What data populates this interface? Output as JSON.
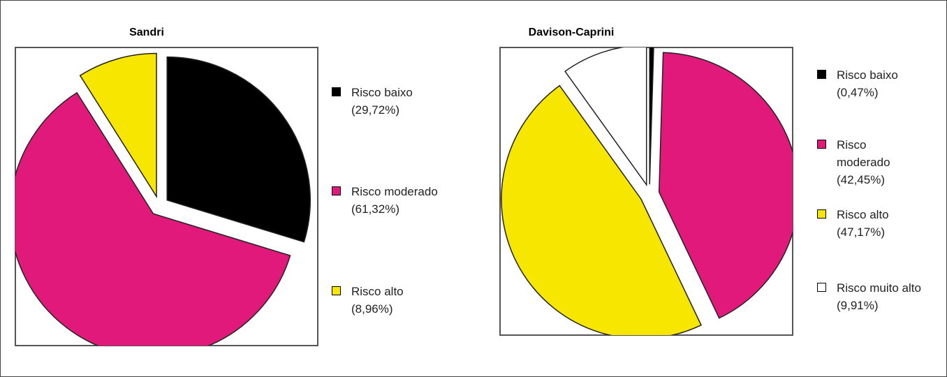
{
  "chart_data": [
    {
      "type": "pie",
      "title": "Sandri",
      "categories": [
        "Risco baixo",
        "Risco moderado",
        "Risco alto"
      ],
      "values": [
        29.72,
        61.32,
        8.96
      ],
      "value_labels": [
        "(29,72%)",
        "(61,32%)",
        "(8,96%)"
      ],
      "colors": [
        "#000000",
        "#e0197a",
        "#f7e600"
      ]
    },
    {
      "type": "pie",
      "title": "Davison-Caprini",
      "categories": [
        "Risco baixo",
        "Risco moderado",
        "Risco alto",
        "Risco muito alto"
      ],
      "values": [
        0.47,
        42.45,
        47.17,
        9.91
      ],
      "value_labels": [
        "(0,47%)",
        "(42,45%)",
        "(47,17%)",
        "(9,91%)"
      ],
      "colors": [
        "#000000",
        "#e0197a",
        "#f7e600",
        "#ffffff"
      ]
    }
  ]
}
